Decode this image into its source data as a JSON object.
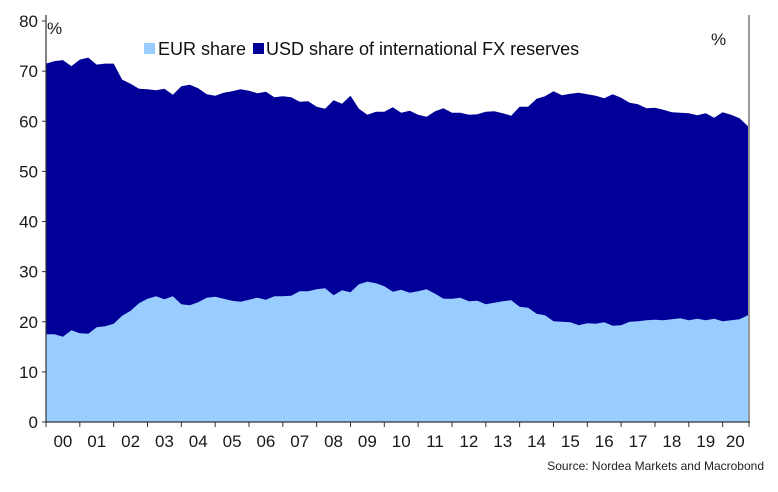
{
  "chart_data": {
    "type": "area",
    "title": "",
    "xlabel": "",
    "ylabel": "",
    "unit_left": "%",
    "unit_right": "%",
    "ylim": [
      0,
      80
    ],
    "y_ticks": [
      0,
      10,
      20,
      30,
      40,
      50,
      60,
      70,
      80
    ],
    "x_ticks": [
      "00",
      "01",
      "02",
      "03",
      "04",
      "05",
      "06",
      "07",
      "08",
      "09",
      "10",
      "11",
      "12",
      "13",
      "14",
      "15",
      "16",
      "17",
      "18",
      "19",
      "20"
    ],
    "x_range": [
      2000.0,
      2020.75
    ],
    "grid": false,
    "legend_position": "top-center",
    "source": "Source: Nordea Markets and Macrobond",
    "colors": {
      "EUR": "#99ccff",
      "USD": "#000099"
    },
    "series": [
      {
        "name": "USD share of international FX reserves",
        "x": [
          2000.0,
          2000.25,
          2000.5,
          2000.75,
          2001.0,
          2001.25,
          2001.5,
          2001.75,
          2002.0,
          2002.25,
          2002.5,
          2002.75,
          2003.0,
          2003.25,
          2003.5,
          2003.75,
          2004.0,
          2004.25,
          2004.5,
          2004.75,
          2005.0,
          2005.25,
          2005.5,
          2005.75,
          2006.0,
          2006.25,
          2006.5,
          2006.75,
          2007.0,
          2007.25,
          2007.5,
          2007.75,
          2008.0,
          2008.25,
          2008.5,
          2008.75,
          2009.0,
          2009.25,
          2009.5,
          2009.75,
          2010.0,
          2010.25,
          2010.5,
          2010.75,
          2011.0,
          2011.25,
          2011.5,
          2011.75,
          2012.0,
          2012.25,
          2012.5,
          2012.75,
          2013.0,
          2013.25,
          2013.5,
          2013.75,
          2014.0,
          2014.25,
          2014.5,
          2014.75,
          2015.0,
          2015.25,
          2015.5,
          2015.75,
          2016.0,
          2016.25,
          2016.5,
          2016.75,
          2017.0,
          2017.25,
          2017.5,
          2017.75,
          2018.0,
          2018.25,
          2018.5,
          2018.75,
          2019.0,
          2019.25,
          2019.5,
          2019.75,
          2020.0,
          2020.25,
          2020.5,
          2020.75
        ],
        "values": [
          71.5,
          72.0,
          72.2,
          71.0,
          72.3,
          72.7,
          71.3,
          71.5,
          71.5,
          68.3,
          67.5,
          66.5,
          66.4,
          66.2,
          66.5,
          65.3,
          67.0,
          67.3,
          66.6,
          65.4,
          65.1,
          65.7,
          66.0,
          66.4,
          66.1,
          65.6,
          65.9,
          64.8,
          65.0,
          64.8,
          63.9,
          64.0,
          62.9,
          62.5,
          64.2,
          63.5,
          65.1,
          62.5,
          61.3,
          61.9,
          61.9,
          62.8,
          61.7,
          62.1,
          61.3,
          60.9,
          62.0,
          62.6,
          61.7,
          61.7,
          61.3,
          61.4,
          61.9,
          62.0,
          61.6,
          61.1,
          62.9,
          62.9,
          64.5,
          65.0,
          66.0,
          65.2,
          65.5,
          65.7,
          65.4,
          65.1,
          64.6,
          65.4,
          64.7,
          63.7,
          63.4,
          62.6,
          62.7,
          62.3,
          61.8,
          61.7,
          61.6,
          61.2,
          61.6,
          60.7,
          61.8,
          61.3,
          60.6,
          59.0
        ]
      },
      {
        "name": "EUR share",
        "x": [
          2000.0,
          2000.25,
          2000.5,
          2000.75,
          2001.0,
          2001.25,
          2001.5,
          2001.75,
          2002.0,
          2002.25,
          2002.5,
          2002.75,
          2003.0,
          2003.25,
          2003.5,
          2003.75,
          2004.0,
          2004.25,
          2004.5,
          2004.75,
          2005.0,
          2005.25,
          2005.5,
          2005.75,
          2006.0,
          2006.25,
          2006.5,
          2006.75,
          2007.0,
          2007.25,
          2007.5,
          2007.75,
          2008.0,
          2008.25,
          2008.5,
          2008.75,
          2009.0,
          2009.25,
          2009.5,
          2009.75,
          2010.0,
          2010.25,
          2010.5,
          2010.75,
          2011.0,
          2011.25,
          2011.5,
          2011.75,
          2012.0,
          2012.25,
          2012.5,
          2012.75,
          2013.0,
          2013.25,
          2013.5,
          2013.75,
          2014.0,
          2014.25,
          2014.5,
          2014.75,
          2015.0,
          2015.25,
          2015.5,
          2015.75,
          2016.0,
          2016.25,
          2016.5,
          2016.75,
          2017.0,
          2017.25,
          2017.5,
          2017.75,
          2018.0,
          2018.25,
          2018.5,
          2018.75,
          2019.0,
          2019.25,
          2019.5,
          2019.75,
          2020.0,
          2020.25,
          2020.5,
          2020.75
        ],
        "values": [
          17.5,
          17.5,
          17.0,
          18.3,
          17.7,
          17.6,
          18.9,
          19.1,
          19.6,
          21.2,
          22.2,
          23.7,
          24.6,
          25.1,
          24.5,
          25.1,
          23.5,
          23.3,
          23.9,
          24.8,
          25.0,
          24.6,
          24.2,
          24.0,
          24.4,
          24.8,
          24.4,
          25.1,
          25.1,
          25.2,
          26.1,
          26.1,
          26.5,
          26.7,
          25.3,
          26.3,
          25.9,
          27.5,
          28.0,
          27.7,
          27.1,
          26.0,
          26.4,
          25.8,
          26.1,
          26.5,
          25.6,
          24.6,
          24.6,
          24.8,
          24.1,
          24.2,
          23.5,
          23.8,
          24.1,
          24.3,
          23.0,
          22.8,
          21.6,
          21.3,
          20.1,
          20.0,
          19.9,
          19.3,
          19.7,
          19.6,
          19.9,
          19.2,
          19.3,
          20.0,
          20.1,
          20.3,
          20.4,
          20.3,
          20.5,
          20.7,
          20.3,
          20.6,
          20.3,
          20.6,
          20.1,
          20.3,
          20.5,
          21.3
        ]
      }
    ]
  }
}
